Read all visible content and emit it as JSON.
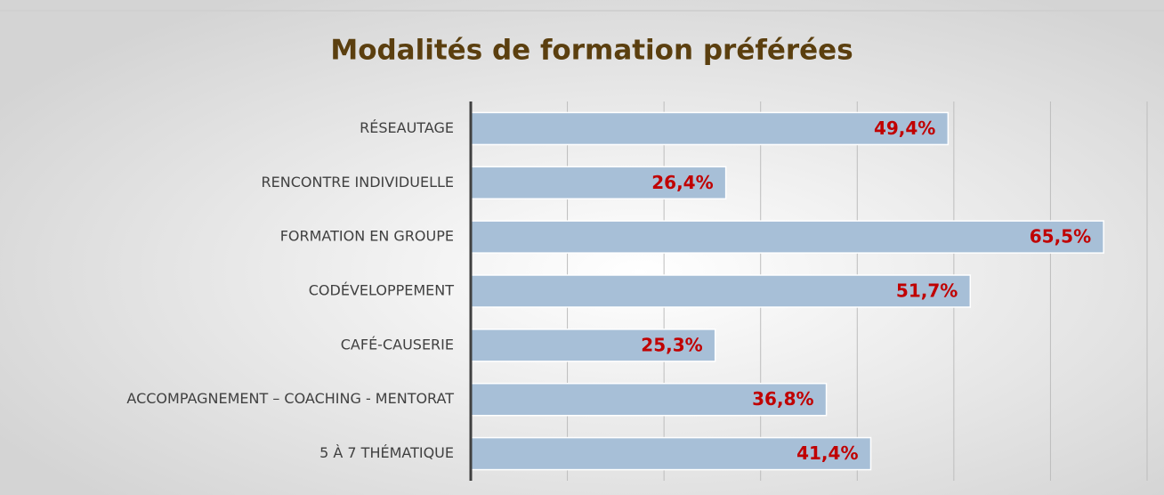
{
  "chart_data": {
    "type": "bar",
    "orientation": "horizontal",
    "title": "Modalités de formation préférées",
    "categories": [
      "RÉSEAUTAGE",
      "RENCONTRE INDIVIDUELLE",
      "FORMATION EN GROUPE",
      "CODÉVELOPPEMENT",
      "CAFÉ-CAUSERIE",
      "ACCOMPAGNEMENT – COACHING - MENTORAT",
      "5 À 7 THÉMATIQUE"
    ],
    "values": [
      49.4,
      26.4,
      65.5,
      51.7,
      25.3,
      36.8,
      41.4
    ],
    "value_labels": [
      "49,4%",
      "26,4%",
      "65,5%",
      "51,7%",
      "25,3%",
      "36,8%",
      "41,4%"
    ],
    "color": "#a7bfd7",
    "label_color": "#c00000",
    "xlim": [
      0,
      70
    ],
    "xticks": [
      0,
      10,
      20,
      30,
      40,
      50,
      60,
      70
    ],
    "grid": true
  }
}
